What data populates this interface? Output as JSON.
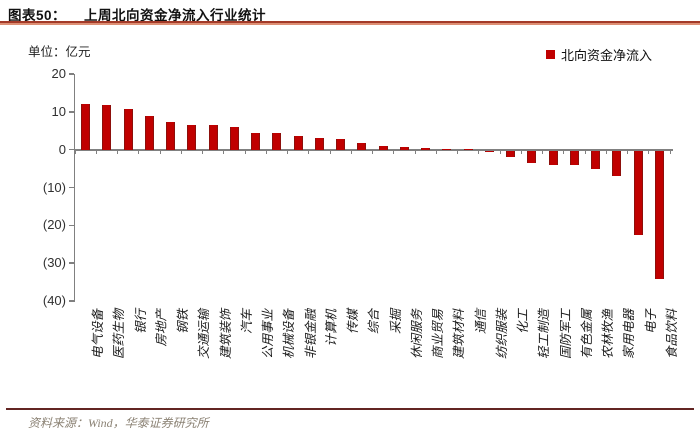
{
  "header": {
    "figure_label": "图表50：",
    "figure_title": "上周北向资金净流入行业统计"
  },
  "chart": {
    "unit_label": "单位：亿元",
    "legend": {
      "label": "北向资金净流入",
      "swatch_color": "#c00000"
    }
  },
  "chart_data": {
    "type": "bar",
    "title": "上周北向资金净流入行业统计",
    "unit": "亿元",
    "legend": [
      "北向资金净流入"
    ],
    "legend_position": "top-right",
    "grid": false,
    "bar_color": "#c00000",
    "axis_color": "#808080",
    "ylim": [
      -40,
      20
    ],
    "yticks": [
      {
        "value": 20,
        "label": "20"
      },
      {
        "value": 10,
        "label": "10"
      },
      {
        "value": 0,
        "label": "0"
      },
      {
        "value": -10,
        "label": "(10)"
      },
      {
        "value": -20,
        "label": "(20)"
      },
      {
        "value": -30,
        "label": "(30)"
      },
      {
        "value": -40,
        "label": "(40)"
      }
    ],
    "categories": [
      "电气设备",
      "医药生物",
      "银行",
      "房地产",
      "钢铁",
      "交通运输",
      "建筑装饰",
      "汽车",
      "公用事业",
      "机械设备",
      "非银金融",
      "计算机",
      "传媒",
      "综合",
      "采掘",
      "休闲服务",
      "商业贸易",
      "建筑材料",
      "通信",
      "纺织服装",
      "化工",
      "轻工制造",
      "国防军工",
      "有色金属",
      "农林牧渔",
      "家用电器",
      "电子",
      "食品饮料"
    ],
    "values": [
      12.2,
      11.9,
      10.8,
      8.8,
      7.4,
      6.6,
      6.5,
      5.9,
      4.4,
      4.3,
      3.5,
      3.1,
      2.8,
      1.7,
      1.0,
      0.7,
      0.4,
      0.2,
      0.1,
      -0.4,
      -1.6,
      -3.3,
      -3.7,
      -3.9,
      -4.8,
      -6.6,
      -22.4,
      -33.8
    ]
  },
  "footer": {
    "source": "资料来源：Wind，华泰证券研究所"
  }
}
